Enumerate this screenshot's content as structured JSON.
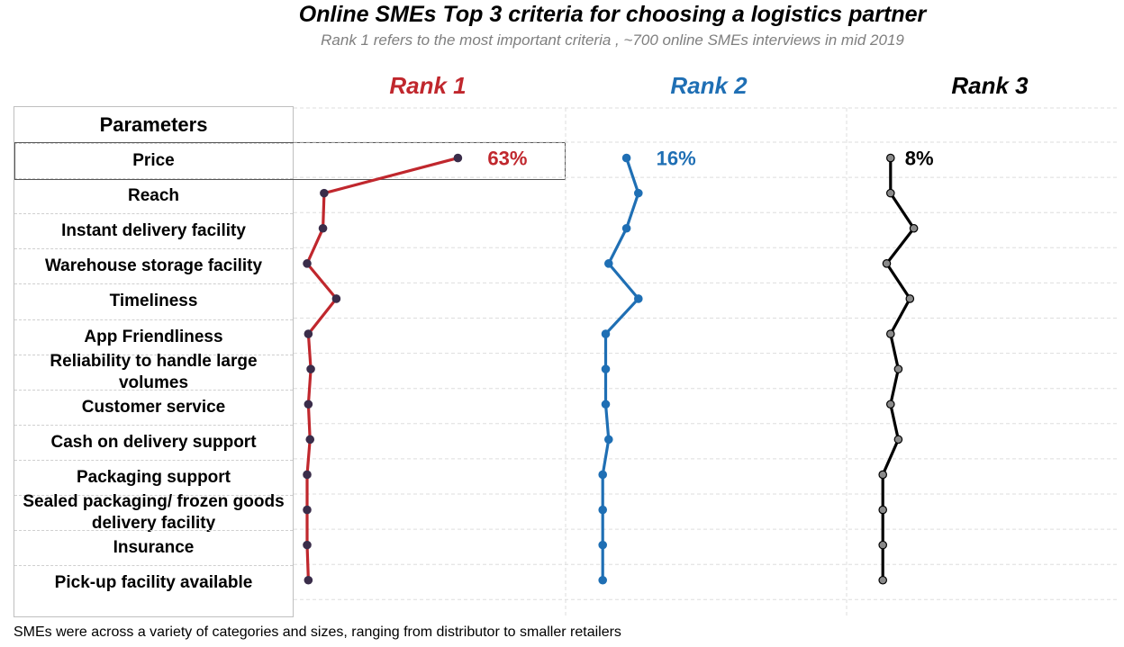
{
  "title": "Online SMEs Top 3 criteria for choosing a logistics partner",
  "subtitle": "Rank 1 refers to the most important criteria , ~700 online SMEs interviews in mid 2019",
  "table_header": "Parameters",
  "footnote": "SMEs were across a variety of categories and sizes, ranging from distributor to smaller retailers",
  "colors": {
    "rank1": "#c0272d",
    "rank2": "#1f6fb4",
    "rank3": "#000000"
  },
  "chart_data": {
    "type": "line",
    "orientation": "horizontal",
    "categories": [
      "Price",
      "Reach",
      "Instant delivery facility",
      "Warehouse storage facility",
      "Timeliness",
      "App Friendliness",
      "Reliability to handle large volumes",
      "Customer service",
      "Cash on delivery support",
      "Packaging support",
      "Sealed packaging/ frozen goods delivery facility",
      "Insurance",
      "Pick-up facility available"
    ],
    "series": [
      {
        "name": "Rank 1",
        "values": [
          63,
          8,
          7.5,
          1,
          13,
          1.5,
          2.5,
          1.5,
          2.2,
          1,
          1,
          1,
          1.5
        ],
        "label_first": "63%"
      },
      {
        "name": "Rank 2",
        "values": [
          16,
          18,
          16,
          13,
          18,
          12.5,
          12.5,
          12.5,
          13,
          12,
          12,
          12,
          12
        ],
        "label_first": "16%"
      },
      {
        "name": "Rank 3",
        "values": [
          8,
          8,
          11,
          7.5,
          10.5,
          8,
          9,
          8,
          9,
          7,
          7,
          7,
          7
        ],
        "label_first": "8%"
      }
    ]
  }
}
